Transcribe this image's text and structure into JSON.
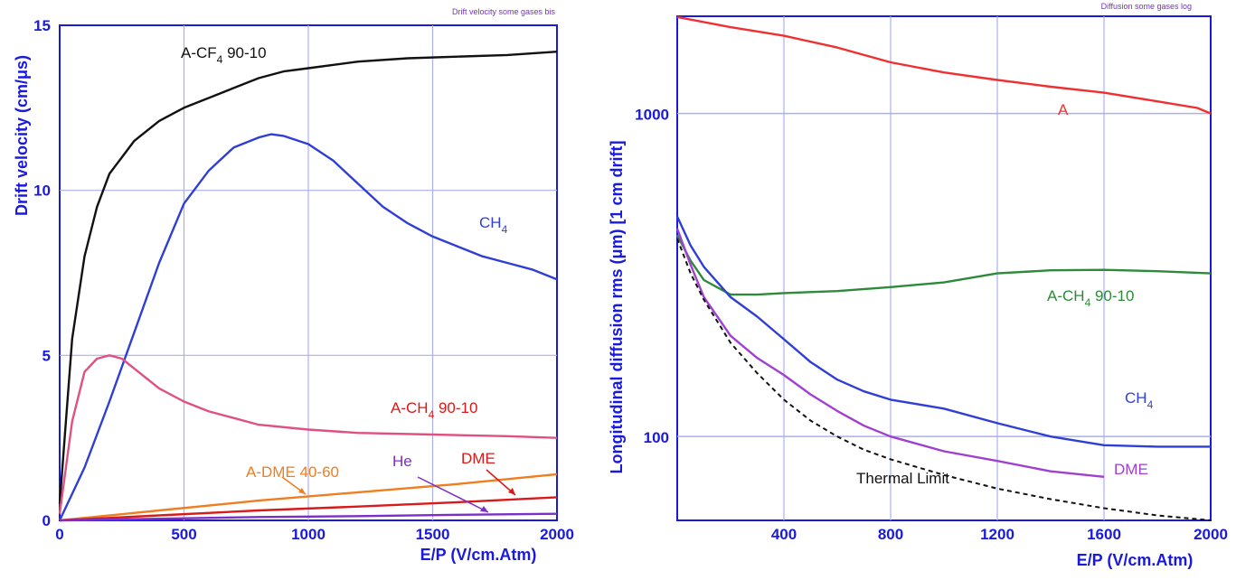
{
  "chart_data": [
    {
      "type": "line",
      "title": "Drift velocity some gases bis",
      "xlabel": "E/P (V/cm.Atm)",
      "ylabel": "Drift velocity (cm/μs)",
      "xlim": [
        0,
        2000
      ],
      "ylim": [
        0,
        15
      ],
      "x_ticks": [
        "0",
        "500",
        "1000",
        "1500",
        "2000"
      ],
      "y_ticks": [
        "0",
        "5",
        "10",
        "15"
      ],
      "grid": true,
      "series": [
        {
          "name_main": "A-CF",
          "name_sub": "4",
          "name_tail": " 90-10",
          "color": "#111111",
          "x": [
            0,
            50,
            100,
            150,
            200,
            250,
            300,
            400,
            500,
            600,
            700,
            800,
            900,
            1000,
            1200,
            1400,
            1600,
            1800,
            2000
          ],
          "y": [
            0.5,
            5.5,
            8.0,
            9.5,
            10.5,
            11.0,
            11.5,
            12.1,
            12.5,
            12.8,
            13.1,
            13.4,
            13.6,
            13.7,
            13.9,
            14.0,
            14.05,
            14.1,
            14.2
          ]
        },
        {
          "name_main": "CH",
          "name_sub": "4",
          "name_tail": "",
          "color": "#2f3fd6",
          "x": [
            0,
            100,
            200,
            300,
            400,
            500,
            600,
            700,
            800,
            850,
            900,
            1000,
            1100,
            1200,
            1300,
            1400,
            1500,
            1600,
            1700,
            1800,
            1900,
            2000
          ],
          "y": [
            0.0,
            1.6,
            3.6,
            5.7,
            7.8,
            9.6,
            10.6,
            11.3,
            11.6,
            11.7,
            11.65,
            11.4,
            10.9,
            10.2,
            9.5,
            9.0,
            8.6,
            8.3,
            8.0,
            7.8,
            7.6,
            7.3
          ]
        },
        {
          "name_main": "A-CH",
          "name_sub": "4",
          "name_tail": " 90-10",
          "color": "#e05080",
          "x": [
            0,
            50,
            100,
            150,
            200,
            250,
            300,
            400,
            500,
            600,
            700,
            800,
            1000,
            1200,
            1500,
            1800,
            2000
          ],
          "y": [
            0.2,
            3.0,
            4.5,
            4.9,
            5.0,
            4.9,
            4.6,
            4.0,
            3.6,
            3.3,
            3.1,
            2.9,
            2.75,
            2.65,
            2.6,
            2.55,
            2.5
          ]
        },
        {
          "name_main": "A-DME 40-60",
          "name_sub": "",
          "name_tail": "",
          "color": "#f07d1e",
          "x": [
            0,
            400,
            800,
            1200,
            1600,
            2000
          ],
          "y": [
            0.0,
            0.3,
            0.6,
            0.85,
            1.1,
            1.4
          ]
        },
        {
          "name_main": "DME",
          "name_sub": "",
          "name_tail": "",
          "color": "#d91a1a",
          "x": [
            0,
            400,
            800,
            1200,
            1600,
            2000
          ],
          "y": [
            0.0,
            0.15,
            0.3,
            0.42,
            0.55,
            0.7
          ]
        },
        {
          "name_main": "He",
          "name_sub": "",
          "name_tail": "",
          "color": "#7a2fc8",
          "x": [
            0,
            400,
            800,
            1200,
            1600,
            2000
          ],
          "y": [
            0.0,
            0.05,
            0.1,
            0.13,
            0.17,
            0.2
          ]
        }
      ]
    },
    {
      "type": "line",
      "title": "Diffusion some gases log",
      "xlabel": "E/P (V/cm.Atm)",
      "ylabel": "Longitudinal diffusion rms (μm)  [1 cm drift]",
      "xlim": [
        0,
        2000
      ],
      "ylim": [
        55,
        2000
      ],
      "yscale": "log",
      "x_ticks": [
        "400",
        "800",
        "1200",
        "1600",
        "2000"
      ],
      "y_ticks": [
        "100",
        "1000"
      ],
      "grid": true,
      "series": [
        {
          "name_main": "A",
          "name_sub": "",
          "name_tail": "",
          "color": "#f03030",
          "dashed": false,
          "x": [
            0,
            200,
            400,
            600,
            800,
            1000,
            1200,
            1400,
            1600,
            1800,
            1950,
            2000
          ],
          "y": [
            1990,
            1850,
            1740,
            1600,
            1440,
            1340,
            1270,
            1210,
            1160,
            1090,
            1040,
            1000
          ]
        },
        {
          "name_main": "A-CH",
          "name_sub": "4",
          "name_tail": " 90-10",
          "color": "#2e8a3a",
          "dashed": false,
          "x": [
            0,
            50,
            100,
            200,
            300,
            400,
            600,
            800,
            1000,
            1200,
            1400,
            1600,
            1800,
            2000
          ],
          "y": [
            420,
            350,
            305,
            275,
            275,
            278,
            282,
            290,
            300,
            320,
            327,
            328,
            325,
            320
          ]
        },
        {
          "name_main": "CH",
          "name_sub": "4",
          "name_tail": "",
          "color": "#2f3fd6",
          "dashed": false,
          "x": [
            0,
            50,
            100,
            200,
            300,
            400,
            500,
            600,
            700,
            800,
            1000,
            1200,
            1400,
            1600,
            1800,
            2000
          ],
          "y": [
            480,
            390,
            335,
            270,
            235,
            200,
            170,
            150,
            138,
            130,
            122,
            110,
            100,
            94,
            93,
            93
          ]
        },
        {
          "name_main": "DME",
          "name_sub": "",
          "name_tail": "",
          "color": "#a040d0",
          "dashed": false,
          "x": [
            0,
            50,
            100,
            200,
            300,
            400,
            500,
            600,
            700,
            800,
            1000,
            1200,
            1400,
            1600
          ],
          "y": [
            440,
            340,
            270,
            205,
            175,
            155,
            135,
            120,
            108,
            100,
            90,
            84,
            78,
            75
          ]
        },
        {
          "name_main": "Thermal Limit",
          "name_sub": "",
          "name_tail": "",
          "color": "#111111",
          "dashed": true,
          "x": [
            0,
            50,
            100,
            200,
            300,
            400,
            500,
            600,
            700,
            800,
            1000,
            1200,
            1400,
            1600,
            1800,
            2000
          ],
          "y": [
            410,
            320,
            265,
            195,
            157,
            130,
            112,
            100,
            91,
            85,
            76,
            69,
            64,
            60,
            57,
            55
          ]
        }
      ]
    }
  ]
}
